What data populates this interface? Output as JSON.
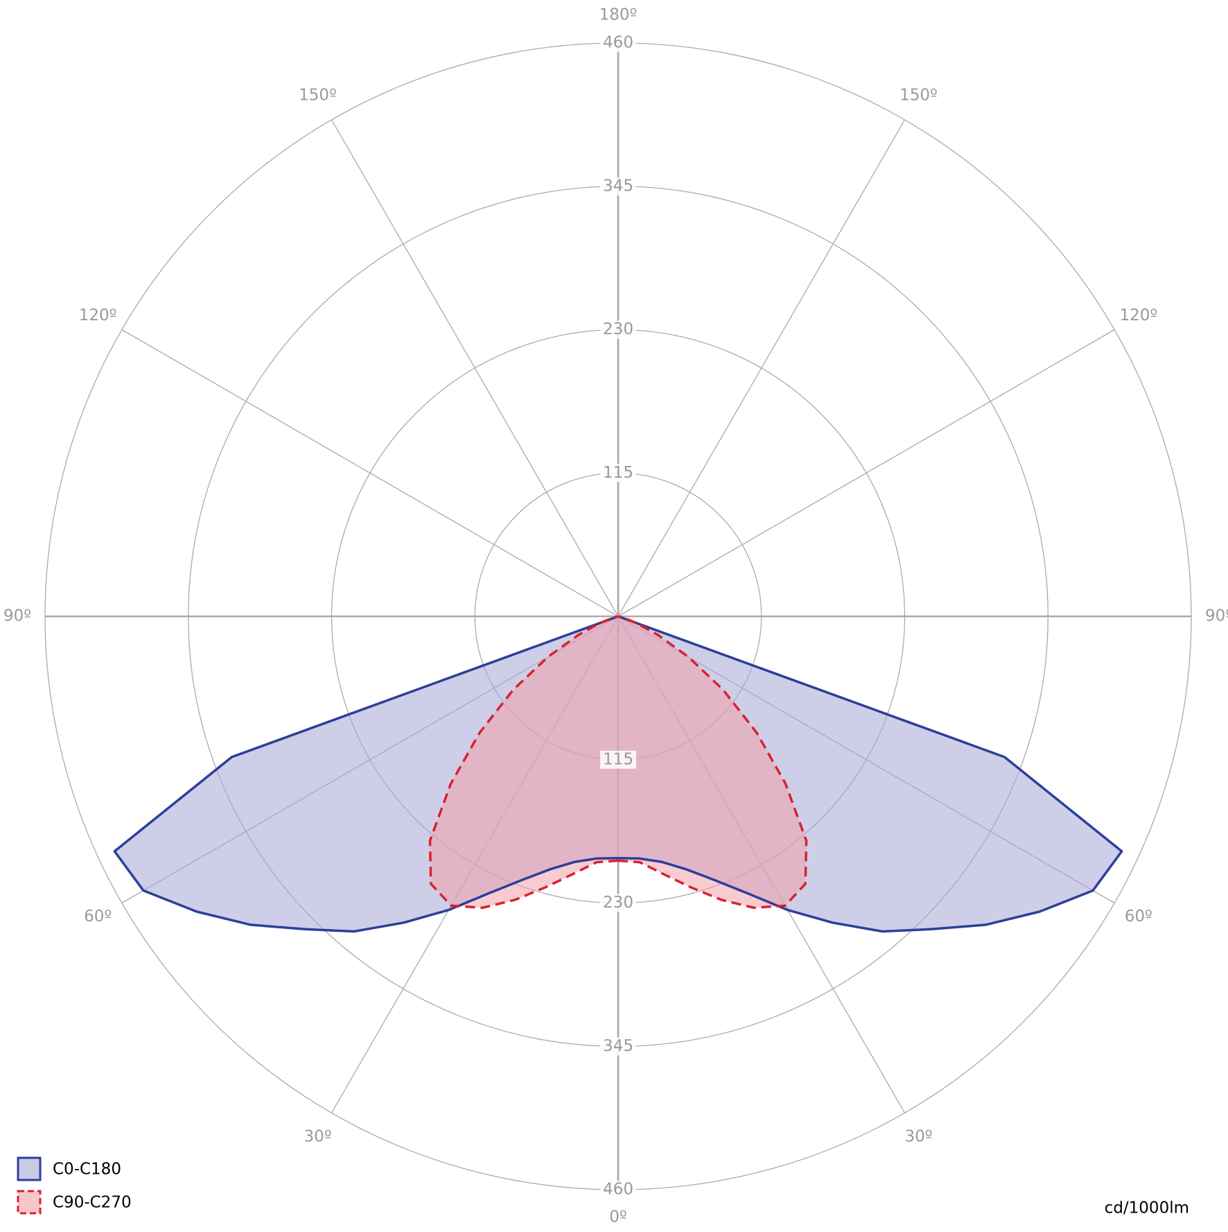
{
  "chart_data": {
    "type": "polar",
    "x": [
      0,
      5,
      10,
      15,
      20,
      25,
      30,
      35,
      40,
      45,
      50,
      55,
      60,
      65,
      70,
      75,
      80,
      85,
      90
    ],
    "series": [
      {
        "name": "C0-C180",
        "color": "#2b3f9a",
        "fill": "#a6a6d6",
        "dashed": false,
        "values": [
          194,
          195,
          200,
          210,
          225,
          245,
          272,
          300,
          330,
          355,
          385,
          413,
          440,
          446,
          330,
          0,
          0,
          0,
          0
        ]
      },
      {
        "name": "C90-C270",
        "color": "#d9212f",
        "fill": "#f2a0aa",
        "dashed": true,
        "values": [
          196,
          198,
          210,
          225,
          242,
          258,
          268,
          262,
          235,
          190,
          145,
          103,
          65,
          35,
          15,
          5,
          0,
          0,
          0
        ]
      }
    ],
    "ylim": [
      0,
      460
    ],
    "yticks": [
      115,
      230,
      345,
      460
    ],
    "xticks": [
      {
        "value": 0,
        "label": "0º"
      },
      {
        "value": 30,
        "label": "30º"
      },
      {
        "value": 60,
        "label": "60º"
      },
      {
        "value": 90,
        "label": "90º"
      },
      {
        "value": 120,
        "label": "120º"
      },
      {
        "value": 150,
        "label": "150º"
      },
      {
        "value": 180,
        "label": "180º"
      }
    ],
    "unit": "cd/1000lm",
    "legend": "bottom-left",
    "grid": true
  }
}
